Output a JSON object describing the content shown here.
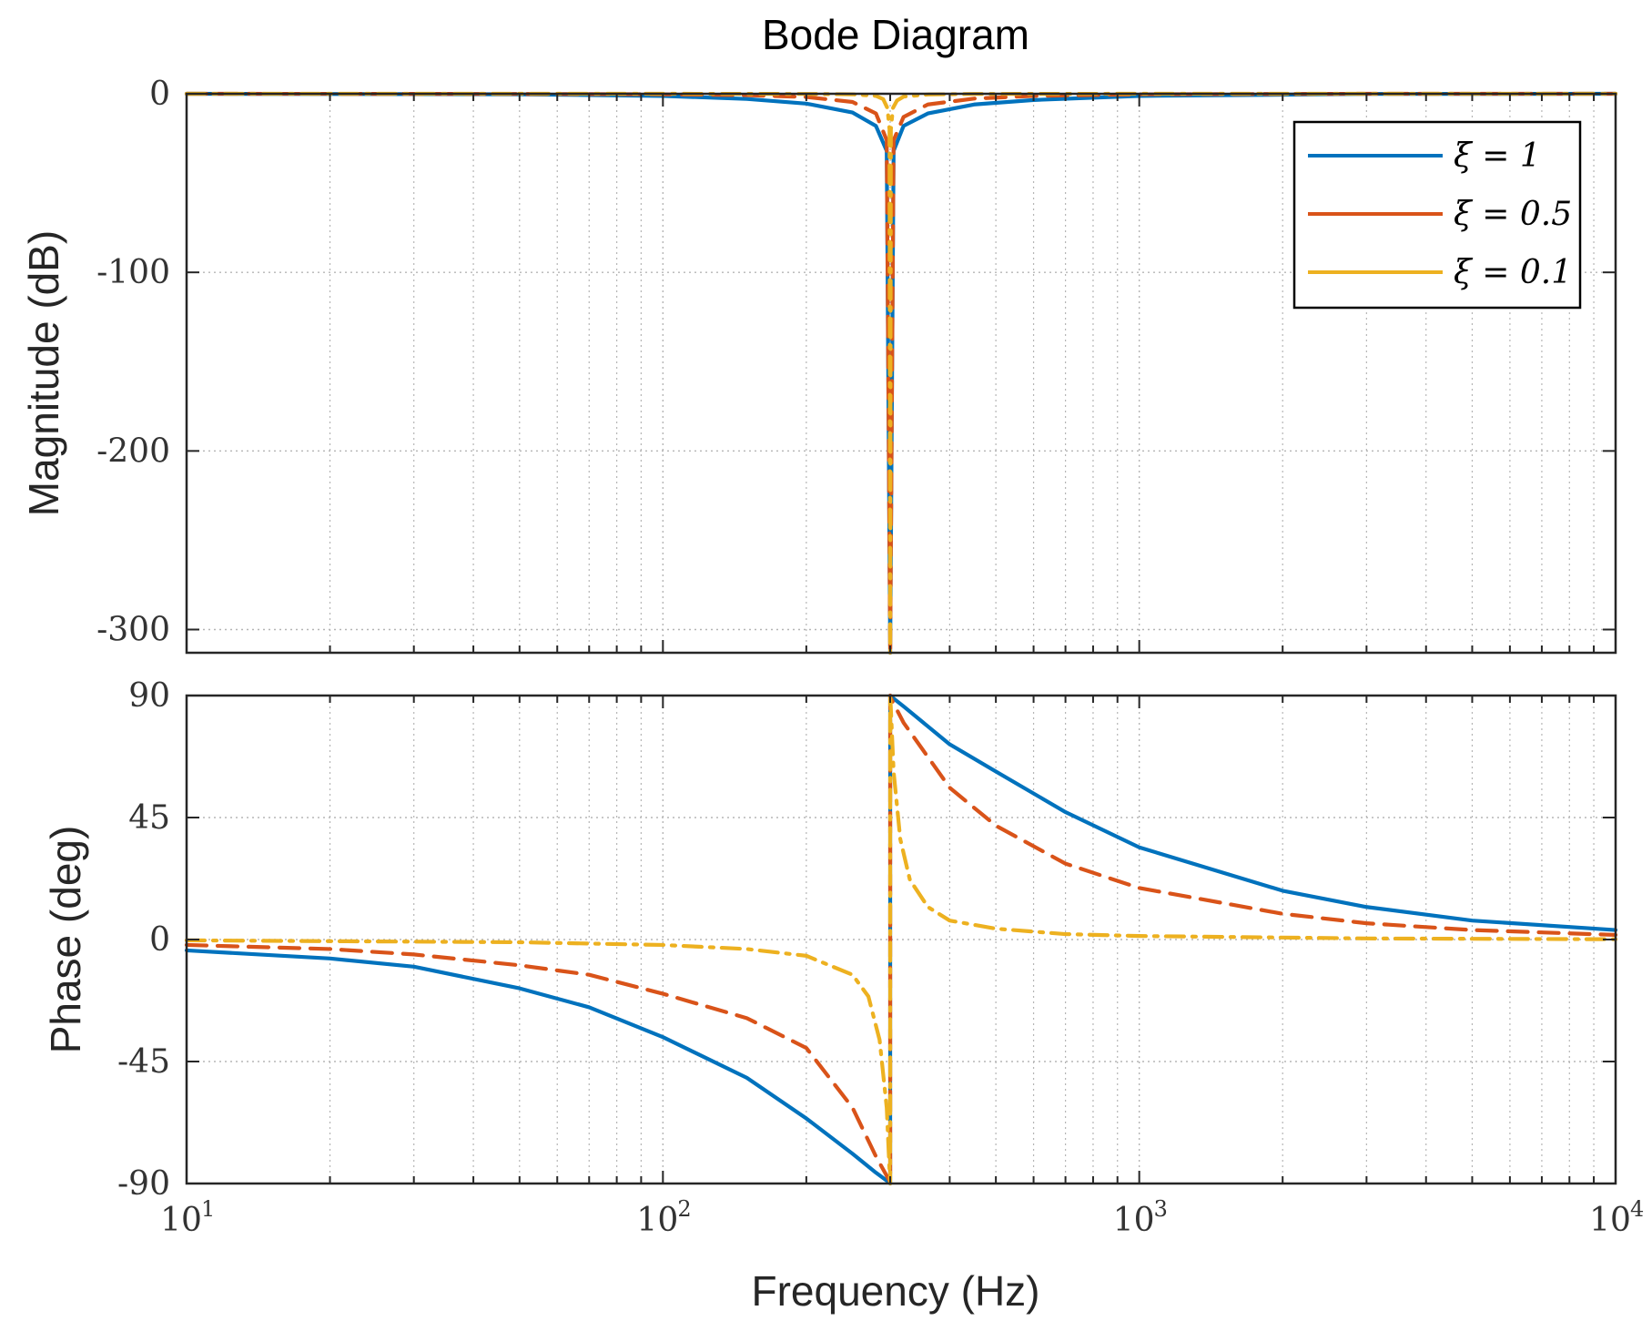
{
  "chart_data": [
    {
      "type": "line",
      "panel": "magnitude",
      "title": "Bode Diagram",
      "xlabel": "",
      "ylabel": "Magnitude (dB)",
      "xscale": "log",
      "xlim": [
        10,
        10000
      ],
      "ylim": [
        -313,
        0
      ],
      "yticks": [
        0,
        -100,
        -200,
        -300
      ],
      "ytick_labels": [
        "0",
        "-100",
        "-200",
        "-300"
      ],
      "grid": true,
      "notch_frequency_hz": 300,
      "notch_min_db": -313,
      "series": [
        {
          "name": "ξ = 1",
          "color": "#0072BD",
          "style": "solid",
          "zeta": 1,
          "x": [
            10,
            50,
            100,
            150,
            200,
            250,
            280,
            295,
            300,
            305,
            320,
            360,
            450,
            600,
            1000,
            3000,
            10000
          ],
          "y": [
            -0.01,
            -0.3,
            -1.2,
            -2.9,
            -5.5,
            -10.5,
            -18,
            -32,
            -313,
            -32,
            -18,
            -11,
            -6,
            -3.5,
            -1.2,
            -0.1,
            -0.01
          ]
        },
        {
          "name": "ξ = 0.5",
          "color": "#D95319",
          "style": "dashed",
          "zeta": 0.5,
          "x": [
            10,
            50,
            100,
            150,
            200,
            250,
            280,
            295,
            300,
            305,
            320,
            360,
            450,
            600,
            1000,
            3000,
            10000
          ],
          "y": [
            0,
            -0.1,
            -0.3,
            -0.8,
            -1.8,
            -4.6,
            -11,
            -26,
            -313,
            -26,
            -13,
            -6,
            -2.7,
            -1.2,
            -0.3,
            0,
            0
          ]
        },
        {
          "name": "ξ = 0.1",
          "color": "#EDB120",
          "style": "dashdot",
          "zeta": 0.1,
          "x": [
            10,
            100,
            200,
            250,
            280,
            290,
            296,
            299,
            300,
            301,
            304,
            310,
            320,
            360,
            450,
            1000,
            10000
          ],
          "y": [
            0,
            0,
            -0.1,
            -0.3,
            -1.2,
            -3,
            -8,
            -20,
            -313,
            -20,
            -8,
            -3.8,
            -1.6,
            -0.4,
            -0.1,
            0,
            0
          ]
        }
      ],
      "legend": {
        "location": "top-right",
        "entries": [
          "ξ = 1",
          "ξ = 0.5",
          "ξ = 0.1"
        ]
      }
    },
    {
      "type": "line",
      "panel": "phase",
      "title": "",
      "xlabel": "Frequency  (Hz)",
      "ylabel": "Phase (deg)",
      "xscale": "log",
      "xlim": [
        10,
        10000
      ],
      "ylim": [
        -90,
        90
      ],
      "yticks": [
        90,
        45,
        0,
        -45,
        -90
      ],
      "ytick_labels": [
        "90",
        "45",
        "0",
        "-45",
        "-90"
      ],
      "xticks": [
        10,
        100,
        1000,
        10000
      ],
      "xtick_labels": [
        {
          "base": "10",
          "exp": "1"
        },
        {
          "base": "10",
          "exp": "2"
        },
        {
          "base": "10",
          "exp": "3"
        },
        {
          "base": "10",
          "exp": "4"
        }
      ],
      "grid": true,
      "series": [
        {
          "name": "ξ = 1",
          "color": "#0072BD",
          "style": "solid",
          "x": [
            10,
            20,
            30,
            50,
            70,
            100,
            150,
            200,
            250,
            280,
            299,
            300,
            300,
            301,
            320,
            400,
            500,
            700,
            1000,
            2000,
            3000,
            5000,
            10000
          ],
          "y": [
            -4,
            -7,
            -10,
            -18,
            -25,
            -36,
            -51,
            -66,
            -79,
            -86,
            -89.7,
            -90,
            90,
            89.7,
            86,
            72,
            62,
            47,
            34,
            18,
            12,
            7,
            3.5
          ]
        },
        {
          "name": "ξ = 0.5",
          "color": "#D95319",
          "style": "dashed",
          "x": [
            10,
            20,
            30,
            50,
            70,
            100,
            150,
            200,
            250,
            280,
            299,
            300,
            300,
            301,
            320,
            400,
            500,
            700,
            1000,
            2000,
            3000,
            5000,
            10000
          ],
          "y": [
            -2,
            -3.5,
            -5.5,
            -9.5,
            -13,
            -20,
            -29,
            -40,
            -62,
            -80,
            -89,
            -90,
            90,
            89,
            80,
            56,
            42,
            28,
            19,
            9.5,
            6,
            3.5,
            1.7
          ]
        },
        {
          "name": "ξ = 0.1",
          "color": "#EDB120",
          "style": "dashdot",
          "x": [
            10,
            50,
            100,
            150,
            200,
            250,
            270,
            285,
            295,
            299,
            300,
            300,
            301,
            305,
            315,
            330,
            360,
            400,
            500,
            700,
            1000,
            3000,
            10000
          ],
          "y": [
            -0.3,
            -1,
            -2,
            -3.5,
            -6,
            -13,
            -21,
            -37,
            -62,
            -85,
            -90,
            90,
            85,
            62,
            37,
            22,
            12,
            7,
            4,
            2,
            1.3,
            0.4,
            0.1
          ]
        }
      ]
    }
  ]
}
